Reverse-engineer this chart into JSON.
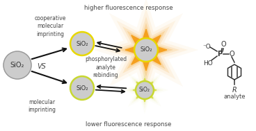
{
  "bg_color": "#ffffff",
  "sio2_fill": "#cccccc",
  "sio2_stroke": "#999999",
  "sio2_text": "SiO₂",
  "yellow_ring_color": "#e8d800",
  "yellow_green_ring_color": "#c8d830",
  "small_sio2_fill": "#cccccc",
  "star_orange_color": "#f5a020",
  "star_yellow_color": "#d8e050",
  "arrow_color": "#111111",
  "text_color": "#444444",
  "title_top": "higher fluorescence response",
  "title_bottom": "lower fluorescence response",
  "label_coop": "cooperative\nmolecular\nimprinting",
  "label_mol": "molecular\nimprinting",
  "label_vs": "VS",
  "label_phospho": "phosphorylated\nanalyte\nrebinding",
  "label_analyte": "analyte",
  "figsize": [
    3.68,
    1.89
  ],
  "dpi": 100
}
